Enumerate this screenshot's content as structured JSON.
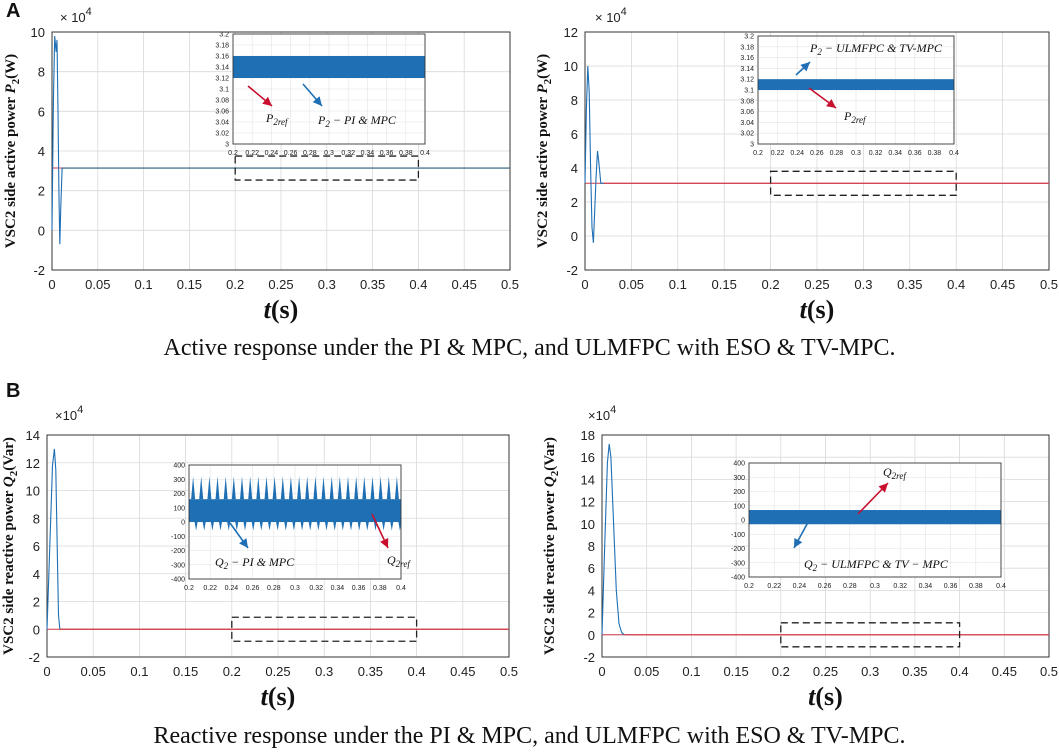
{
  "panel_labels": [
    "A",
    "B"
  ],
  "captions": {
    "active": "Active response under the PI & MPC, and ULMFPC with ESO & TV-MPC.",
    "reactive": "Reactive response under the PI & MPC, and ULMFPC with ESO & TV-MPC."
  },
  "colors": {
    "signal": "#1f6fb4",
    "reference": "#d23a4a",
    "grid": "#d9d9d9",
    "axis": "#333333",
    "arrow_blue": "#1f6fb4",
    "arrow_red": "#c8102e"
  },
  "chart_data": [
    {
      "id": "A-left",
      "type": "line",
      "ylabel_main": "VSC2 side active power ",
      "ylabel_sym": "P",
      "ylabel_sub": "2",
      "ylabel_unit": "(W)",
      "xlabel_italic": "t",
      "xlabel_unit": "(s)",
      "exponent_base": "× 10",
      "exponent_power": "4",
      "xlim": [
        0,
        0.5
      ],
      "ylim": [
        -2,
        10
      ],
      "xticks": [
        "0",
        "0.05",
        "0.1",
        "0.15",
        "0.2",
        "0.25",
        "0.3",
        "0.35",
        "0.4",
        "0.45",
        "0.5"
      ],
      "yticks": [
        "-2",
        "0",
        "2",
        "4",
        "6",
        "8",
        "10"
      ],
      "transient": [
        [
          0,
          0
        ],
        [
          0.0015,
          6.5
        ],
        [
          0.003,
          9.8
        ],
        [
          0.0045,
          9.0
        ],
        [
          0.0055,
          9.6
        ],
        [
          0.0065,
          6.0
        ],
        [
          0.0075,
          2.0
        ],
        [
          0.0085,
          -0.7
        ],
        [
          0.0095,
          1.0
        ],
        [
          0.011,
          3.14
        ]
      ],
      "steady_value": 3.14,
      "reference_value": 3.14,
      "zoom_window": [
        0.2,
        0.4
      ],
      "inset": {
        "xlim": [
          0.2,
          0.4
        ],
        "ylim": [
          3.0,
          3.2
        ],
        "xticks": [
          "0.2",
          "0.22",
          "0.24",
          "0.26",
          "0.28",
          "0.3",
          "0.32",
          "0.34",
          "0.36",
          "0.38",
          "0.4"
        ],
        "yticks": [
          "3",
          "3.02",
          "3.04",
          "3.06",
          "3.08",
          "3.1",
          "3.12",
          "3.14",
          "3.16",
          "3.18",
          "3.2"
        ],
        "band": [
          3.12,
          3.16
        ],
        "spiky": false,
        "ref_label_main": "P",
        "ref_label_sub": "2ref",
        "sig_label_main": "P",
        "sig_label_sub": "2",
        "sig_label_rest": " − PI & MPC"
      }
    },
    {
      "id": "A-right",
      "type": "line",
      "ylabel_main": "VSC2 side active power ",
      "ylabel_sym": "P",
      "ylabel_sub": "2",
      "ylabel_unit": "(W)",
      "xlabel_italic": "t",
      "xlabel_unit": "(s)",
      "exponent_base": "× 10",
      "exponent_power": "4",
      "xlim": [
        0,
        0.5
      ],
      "ylim": [
        -2,
        12
      ],
      "xticks": [
        "0",
        "0.05",
        "0.1",
        "0.15",
        "0.2",
        "0.25",
        "0.3",
        "0.35",
        "0.4",
        "0.45",
        "0.5"
      ],
      "yticks": [
        "-2",
        "0",
        "2",
        "4",
        "6",
        "8",
        "10",
        "12"
      ],
      "transient": [
        [
          0,
          3.1
        ],
        [
          0.0015,
          7.5
        ],
        [
          0.003,
          10.0
        ],
        [
          0.0045,
          8.5
        ],
        [
          0.006,
          4.0
        ],
        [
          0.0075,
          0.5
        ],
        [
          0.009,
          -0.4
        ],
        [
          0.0105,
          1.5
        ],
        [
          0.012,
          3.5
        ],
        [
          0.0135,
          5.0
        ],
        [
          0.015,
          4.3
        ],
        [
          0.017,
          3.1
        ],
        [
          0.02,
          3.1
        ]
      ],
      "steady_value": 3.1,
      "reference_value": 3.1,
      "zoom_window": [
        0.2,
        0.4
      ],
      "inset": {
        "xlim": [
          0.2,
          0.4
        ],
        "ylim": [
          3.0,
          3.2
        ],
        "xticks": [
          "0.2",
          "0.22",
          "0.24",
          "0.26",
          "0.28",
          "0.3",
          "0.32",
          "0.34",
          "0.36",
          "0.38",
          "0.4"
        ],
        "yticks": [
          "3",
          "3.02",
          "3.04",
          "3.06",
          "3.08",
          "3.1",
          "3.12",
          "3.14",
          "3.16",
          "3.18",
          "3.2"
        ],
        "band": [
          3.1,
          3.12
        ],
        "spiky": false,
        "ref_label_main": "P",
        "ref_label_sub": "2ref",
        "sig_label_main": "P",
        "sig_label_sub": "2",
        "sig_label_rest": " − ULMFPC & TV-MPC"
      }
    },
    {
      "id": "B-left",
      "type": "line",
      "ylabel_main": "VSC2 side reactive power ",
      "ylabel_sym": "Q",
      "ylabel_sub": "2",
      "ylabel_unit": "(Var)",
      "xlabel_italic": "t",
      "xlabel_unit": "(s)",
      "exponent_base": "×10",
      "exponent_power": "4",
      "xlim": [
        0,
        0.5
      ],
      "ylim": [
        -2,
        14
      ],
      "xticks": [
        "0",
        "0.05",
        "0.1",
        "0.15",
        "0.2",
        "0.25",
        "0.3",
        "0.35",
        "0.4",
        "0.45",
        "0.5"
      ],
      "yticks": [
        "-2",
        "0",
        "2",
        "4",
        "6",
        "8",
        "10",
        "12",
        "14"
      ],
      "transient": [
        [
          0,
          0
        ],
        [
          0.003,
          6.0
        ],
        [
          0.006,
          11.8
        ],
        [
          0.008,
          13.0
        ],
        [
          0.0095,
          11.5
        ],
        [
          0.011,
          6.0
        ],
        [
          0.0125,
          1.0
        ],
        [
          0.014,
          0.0
        ]
      ],
      "steady_value": 0,
      "reference_value": 0,
      "zoom_window": [
        0.2,
        0.4
      ],
      "inset": {
        "xlim": [
          0.2,
          0.4
        ],
        "ylim": [
          -400,
          400
        ],
        "xticks": [
          "0.2",
          "0.22",
          "0.24",
          "0.26",
          "0.28",
          "0.3",
          "0.32",
          "0.34",
          "0.36",
          "0.38",
          "0.4"
        ],
        "yticks": [
          "-400",
          "-300",
          "-200",
          "-100",
          "0",
          "100",
          "200",
          "300",
          "400"
        ],
        "band": [
          0,
          160
        ],
        "spiky": true,
        "spike_top": 320,
        "spike_bottom": -60,
        "spike_count": 26,
        "ref_label_main": "Q",
        "ref_label_sub": "2ref",
        "sig_label_main": "Q",
        "sig_label_sub": "2",
        "sig_label_rest": " − PI & MPC"
      }
    },
    {
      "id": "B-right",
      "type": "line",
      "ylabel_main": "VSC2 side reactive power ",
      "ylabel_sym": "Q",
      "ylabel_sub": "2",
      "ylabel_unit": "(Var)",
      "xlabel_italic": "t",
      "xlabel_unit": "(s)",
      "exponent_base": "×10",
      "exponent_power": "4",
      "xlim": [
        0,
        0.5
      ],
      "ylim": [
        -2,
        18
      ],
      "xticks": [
        "0",
        "0.05",
        "0.1",
        "0.15",
        "0.2",
        "0.25",
        "0.3",
        "0.35",
        "0.4",
        "0.45",
        "0.5"
      ],
      "yticks": [
        "-2",
        "0",
        "2",
        "4",
        "6",
        "8",
        "10",
        "12",
        "14",
        "16",
        "18"
      ],
      "transient": [
        [
          0,
          0
        ],
        [
          0.003,
          8.0
        ],
        [
          0.006,
          15.5
        ],
        [
          0.008,
          17.2
        ],
        [
          0.01,
          16.0
        ],
        [
          0.013,
          10.0
        ],
        [
          0.016,
          4.0
        ],
        [
          0.019,
          1.0
        ],
        [
          0.022,
          0.2
        ],
        [
          0.025,
          0.0
        ]
      ],
      "steady_value": 0,
      "reference_value": 0,
      "zoom_window": [
        0.2,
        0.4
      ],
      "inset": {
        "xlim": [
          0.2,
          0.4
        ],
        "ylim": [
          -400,
          400
        ],
        "xticks": [
          "0.2",
          "0.22",
          "0.24",
          "0.26",
          "0.28",
          "0.3",
          "0.32",
          "0.34",
          "0.36",
          "0.38",
          "0.4"
        ],
        "yticks": [
          "-400",
          "-300",
          "-200",
          "-100",
          "0",
          "100",
          "200",
          "300",
          "400"
        ],
        "band": [
          -30,
          70
        ],
        "spiky": false,
        "ref_label_main": "Q",
        "ref_label_sub": "2ref",
        "sig_label_main": "Q",
        "sig_label_sub": "2",
        "sig_label_rest": " − ULMFPC & TV − MPC"
      }
    }
  ]
}
